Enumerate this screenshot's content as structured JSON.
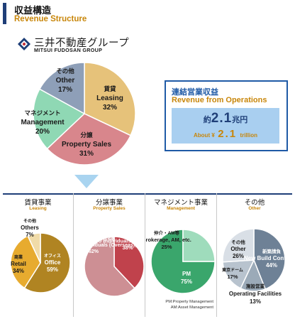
{
  "header": {
    "title_jp": "収益構造",
    "title_en": "Revenue Structure"
  },
  "logo": {
    "text_jp": "三井不動産グループ",
    "text_en": "MITSUI FUDOSAN GROUP"
  },
  "revenue_box": {
    "title_jp": "連結営業収益",
    "title_en": "Revenue from Operations",
    "prefix_jp": "約",
    "value": "2.1",
    "unit_jp": "兆円",
    "about_label": "About ¥",
    "about_value": "2.1",
    "about_unit": "trillion"
  },
  "colors": {
    "leasing": "#e6c27a",
    "property_sales": "#d8868c",
    "management": "#8fd8b4",
    "other": "#8e9fb8",
    "leasing_office": "#b08422",
    "leasing_retail": "#e7ab2f",
    "leasing_other": "#f0dba8",
    "sales_domestic": "#c0424c",
    "sales_overseas": "#cd8f94",
    "mgmt_brokerage": "#9fdcbc",
    "mgmt_pm": "#3aa66c",
    "other_newbuild": "#6e8196",
    "other_facilities": "#9baab8",
    "other_tokyodome": "#b8c3ce",
    "other_other": "#d9dfe6",
    "navy": "#1f3f78",
    "gold": "#c8860a"
  },
  "chart_data": [
    {
      "type": "pie",
      "title": "",
      "slices": [
        {
          "label": "賃貸\nLeasing",
          "value": 32,
          "display": "32%"
        },
        {
          "label": "分譲\nProperty Sales",
          "value": 31,
          "display": "31%"
        },
        {
          "label": "マネジメント\nManagement",
          "value": 20,
          "display": "20%"
        },
        {
          "label": "その他\nOther",
          "value": 17,
          "display": "17%"
        }
      ]
    },
    {
      "type": "pie",
      "title": "賃貸事業 Leasing",
      "slices": [
        {
          "label": "オフィス\nOffice",
          "value": 59,
          "display": "59%"
        },
        {
          "label": "商業\nRetail",
          "value": 34,
          "display": "34%"
        },
        {
          "label": "その他\nOthers",
          "value": 7,
          "display": "7%"
        }
      ]
    },
    {
      "type": "pie",
      "title": "分譲事業 Property Sales",
      "slices": [
        {
          "label": "国内住宅\nTo Individuals (Domestic)",
          "value": 38,
          "display": "38%"
        },
        {
          "label": "投資家向け・海外住宅等\nTo Investors and Individuals (Overseas), etc.",
          "value": 62,
          "display": "62%"
        }
      ]
    },
    {
      "type": "pie",
      "title": "マネジメント事業 Management",
      "slices": [
        {
          "label": "PM",
          "value": 75,
          "display": "75%"
        },
        {
          "label": "仲介・AM等\nBrokerage, AM, etc.",
          "value": 25,
          "display": "25%"
        }
      ],
      "footnote": [
        "PM:Property Management",
        "AM:Asset Management"
      ]
    },
    {
      "type": "pie",
      "title": "その他 Other",
      "slices": [
        {
          "label": "新築請負\nNew Build Contracts",
          "value": 44,
          "display": "44%"
        },
        {
          "label": "施設営業\nOperating Facilities",
          "value": 13,
          "display": "13%"
        },
        {
          "label": "東京ドーム",
          "value": 17,
          "display": "17%"
        },
        {
          "label": "その他\nOther",
          "value": 26,
          "display": "26%"
        }
      ]
    }
  ]
}
